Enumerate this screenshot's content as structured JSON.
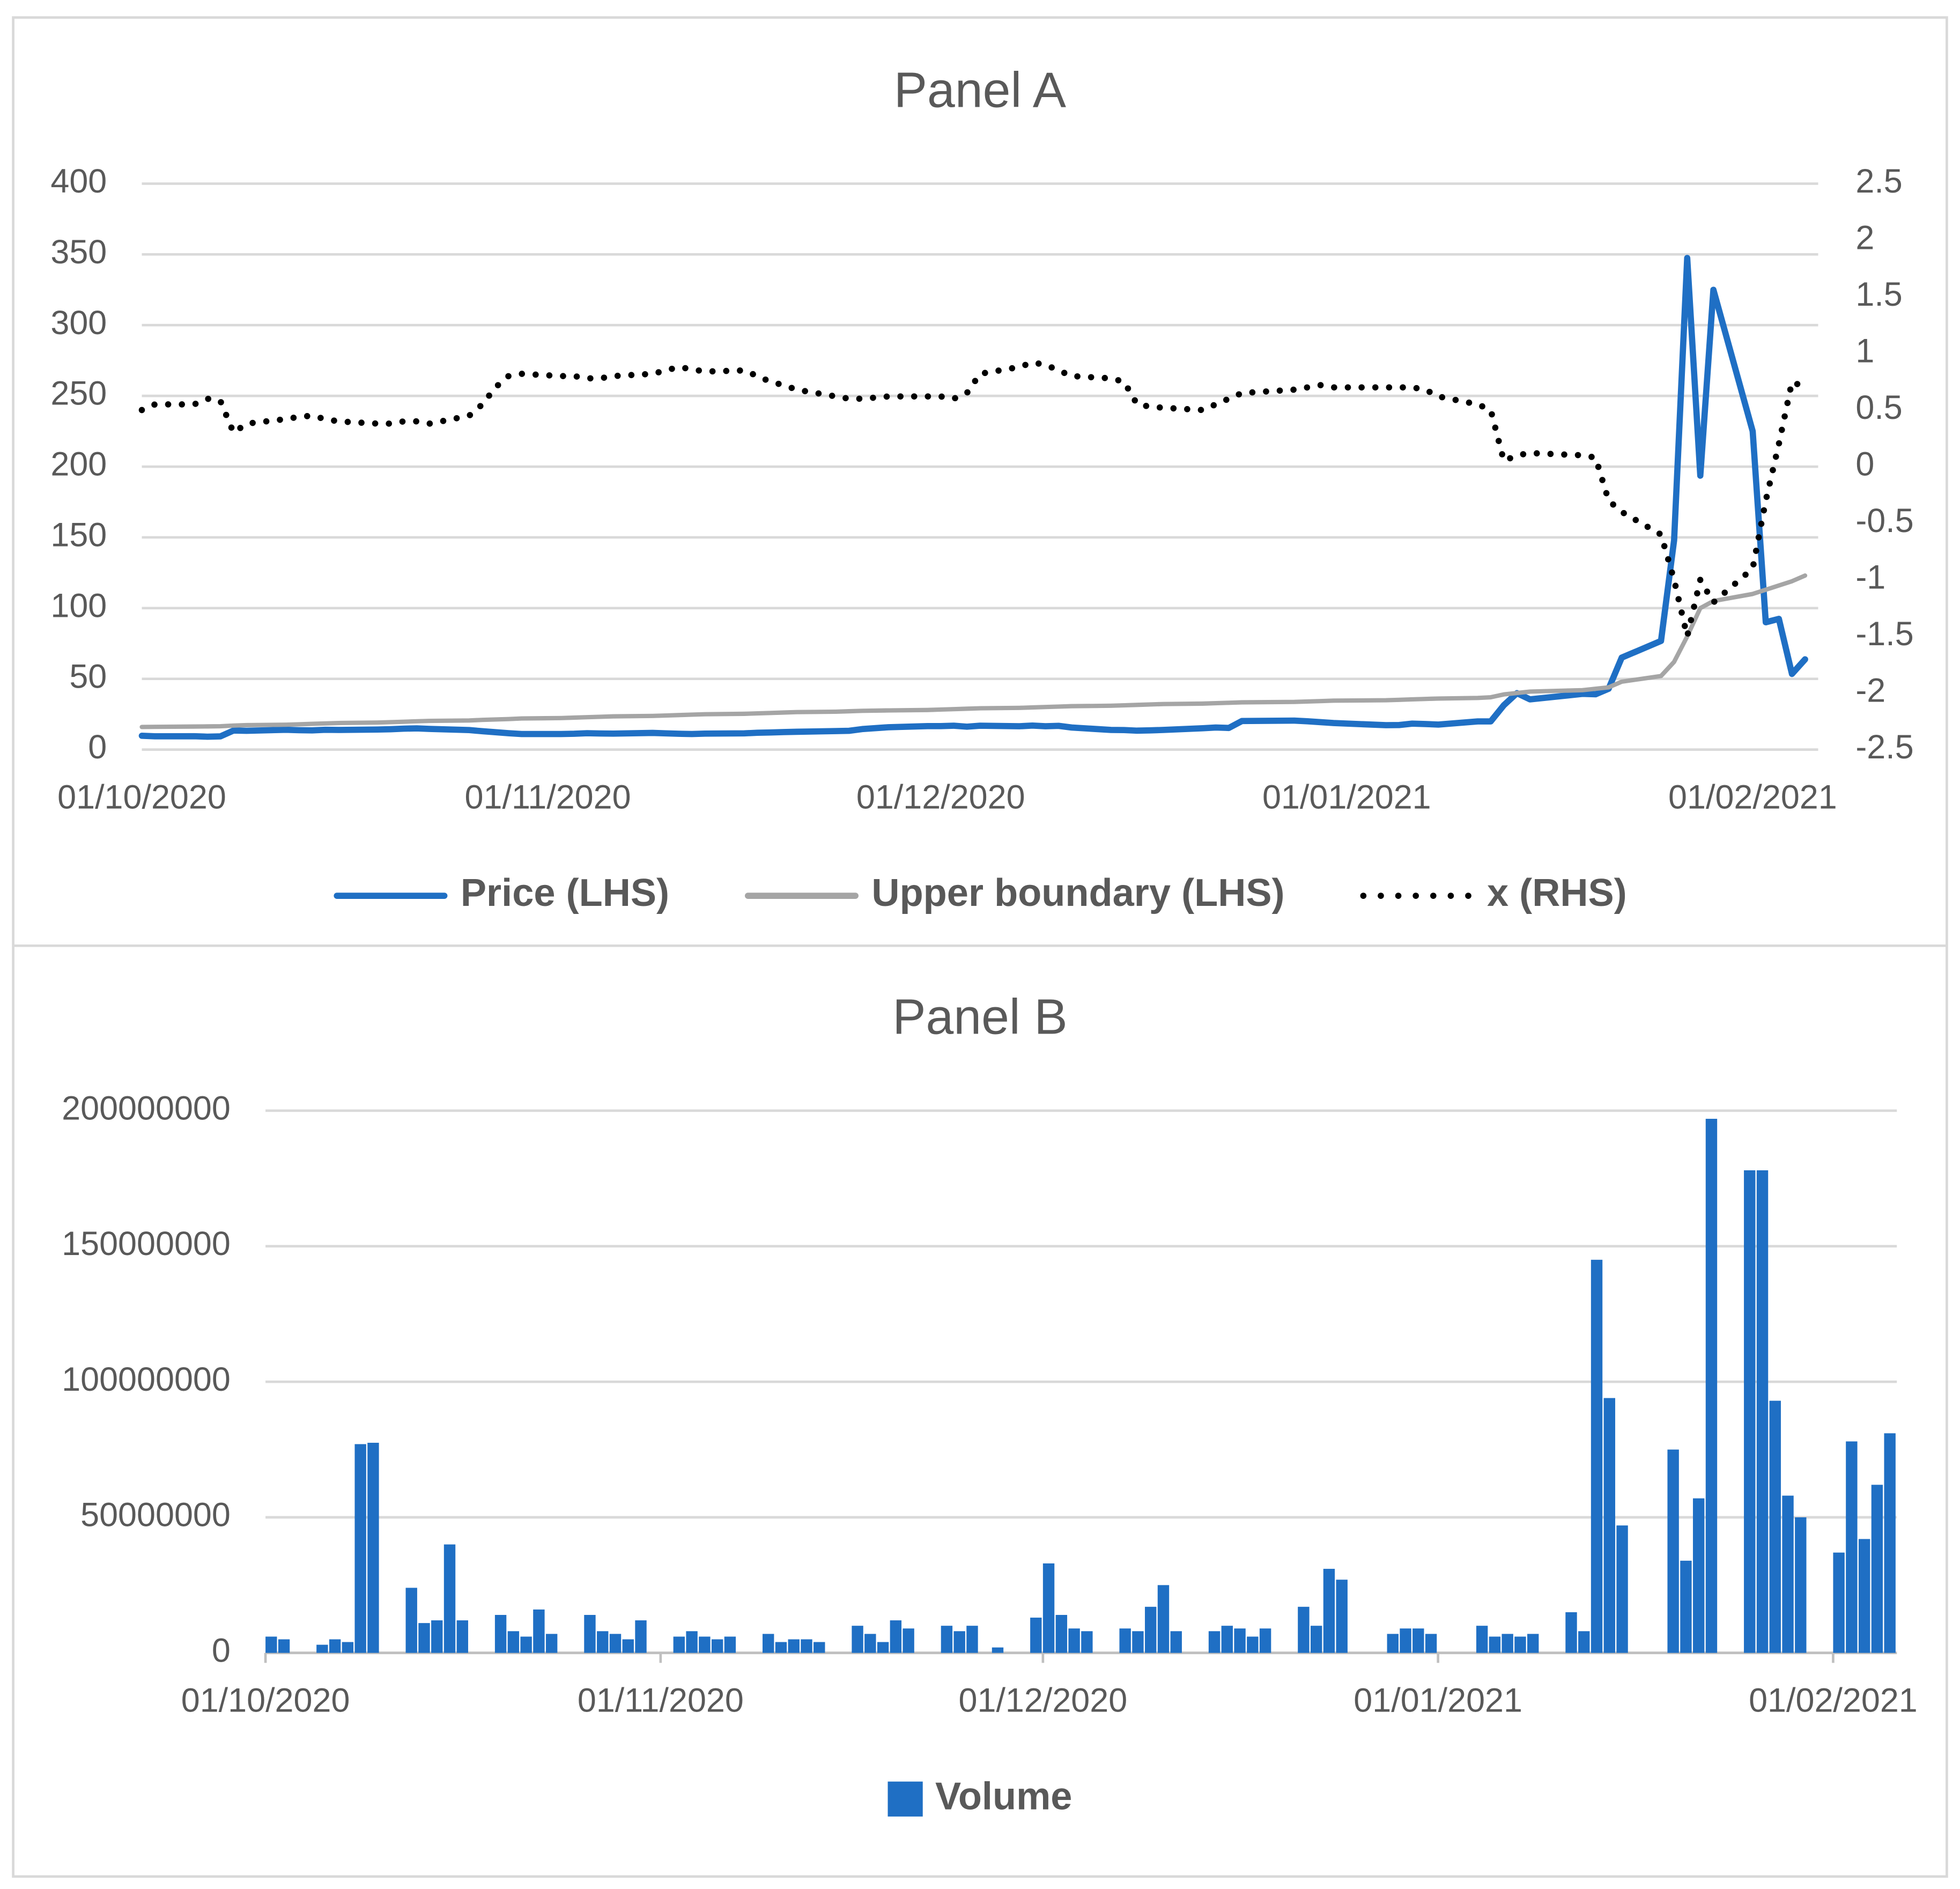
{
  "chart_data": [
    {
      "type": "line",
      "title": "Panel A",
      "x": [
        "2020-10-01",
        "2020-10-02",
        "2020-10-05",
        "2020-10-06",
        "2020-10-07",
        "2020-10-08",
        "2020-10-09",
        "2020-10-12",
        "2020-10-13",
        "2020-10-14",
        "2020-10-15",
        "2020-10-16",
        "2020-10-19",
        "2020-10-20",
        "2020-10-21",
        "2020-10-22",
        "2020-10-23",
        "2020-10-26",
        "2020-10-27",
        "2020-10-28",
        "2020-10-29",
        "2020-10-30",
        "2020-11-02",
        "2020-11-03",
        "2020-11-04",
        "2020-11-05",
        "2020-11-06",
        "2020-11-09",
        "2020-11-10",
        "2020-11-11",
        "2020-11-12",
        "2020-11-13",
        "2020-11-16",
        "2020-11-17",
        "2020-11-18",
        "2020-11-19",
        "2020-11-20",
        "2020-11-23",
        "2020-11-24",
        "2020-11-25",
        "2020-11-27",
        "2020-11-30",
        "2020-12-01",
        "2020-12-02",
        "2020-12-03",
        "2020-12-04",
        "2020-12-07",
        "2020-12-08",
        "2020-12-09",
        "2020-12-10",
        "2020-12-11",
        "2020-12-14",
        "2020-12-15",
        "2020-12-16",
        "2020-12-17",
        "2020-12-18",
        "2020-12-21",
        "2020-12-22",
        "2020-12-23",
        "2020-12-24",
        "2020-12-28",
        "2020-12-29",
        "2020-12-30",
        "2020-12-31",
        "2021-01-04",
        "2021-01-05",
        "2021-01-06",
        "2021-01-07",
        "2021-01-08",
        "2021-01-11",
        "2021-01-12",
        "2021-01-13",
        "2021-01-14",
        "2021-01-15",
        "2021-01-19",
        "2021-01-20",
        "2021-01-21",
        "2021-01-22",
        "2021-01-25",
        "2021-01-26",
        "2021-01-27",
        "2021-01-28",
        "2021-01-29",
        "2021-02-01",
        "2021-02-02",
        "2021-02-03",
        "2021-02-04",
        "2021-02-05"
      ],
      "xlim": [
        "2020-10-01",
        "2021-02-06"
      ],
      "xticks": [
        {
          "value": "2020-10-01",
          "label": "01/10/2020"
        },
        {
          "value": "2020-11-01",
          "label": "01/11/2020"
        },
        {
          "value": "2020-12-01",
          "label": "01/12/2020"
        },
        {
          "value": "2021-01-01",
          "label": "01/01/2021"
        },
        {
          "value": "2021-02-01",
          "label": "01/02/2021"
        }
      ],
      "ylim": [
        0,
        400
      ],
      "yticks": [
        0,
        50,
        100,
        150,
        200,
        250,
        300,
        350,
        400
      ],
      "y2lim": [
        -2.5,
        2.5
      ],
      "y2ticks": [
        -2.5,
        -2,
        -1.5,
        -1,
        -0.5,
        0,
        0.5,
        1,
        1.5,
        2,
        2.5
      ],
      "grid": true,
      "legend": "bottom",
      "series": [
        {
          "name": "Price (LHS)",
          "color": "#1f6fc4",
          "style": "solid",
          "values": [
            9.77,
            9.39,
            9.46,
            9.13,
            9.36,
            13.49,
            13.31,
            14.0,
            13.7,
            13.6,
            14.0,
            13.9,
            14.2,
            14.4,
            14.8,
            15.0,
            14.6,
            13.8,
            13.0,
            12.3,
            11.6,
            11.0,
            11.0,
            11.2,
            11.6,
            11.4,
            11.3,
            11.8,
            11.5,
            11.2,
            11.0,
            11.3,
            11.5,
            11.9,
            12.1,
            12.4,
            12.6,
            13.1,
            13.3,
            14.5,
            15.8,
            16.6,
            16.6,
            16.9,
            16.2,
            16.9,
            16.5,
            17.0,
            16.5,
            16.8,
            15.6,
            13.9,
            13.8,
            13.4,
            13.6,
            13.9,
            15.1,
            15.6,
            15.3,
            20.2,
            20.5,
            20.0,
            19.4,
            18.8,
            17.25,
            17.37,
            18.36,
            18.08,
            17.69,
            19.94,
            19.95,
            31.4,
            39.9,
            35.5,
            39.4,
            39.1,
            43.0,
            65.0,
            76.8,
            148.0,
            347.5,
            193.6,
            325.0,
            225.0,
            90.0,
            92.4,
            53.5,
            63.8
          ]
        },
        {
          "name": "Upper boundary  (LHS)",
          "color": "#a5a5a5",
          "style": "solid",
          "values": [
            16,
            16.1,
            16.3,
            16.4,
            16.5,
            17,
            17.3,
            17.6,
            17.9,
            18.2,
            18.5,
            18.8,
            19.1,
            19.4,
            19.7,
            20,
            20.3,
            20.6,
            21,
            21.3,
            21.6,
            22,
            22.3,
            22.6,
            22.9,
            23.2,
            23.5,
            23.8,
            24.1,
            24.4,
            24.7,
            25,
            25.3,
            25.6,
            25.9,
            26.2,
            26.5,
            26.8,
            27.1,
            27.4,
            27.7,
            28,
            28.3,
            28.6,
            28.9,
            29.2,
            29.5,
            29.8,
            30.1,
            30.4,
            30.7,
            31,
            31.3,
            31.6,
            31.9,
            32.2,
            32.5,
            32.8,
            33.1,
            33.4,
            33.7,
            34,
            34.3,
            34.6,
            34.9,
            35.2,
            35.5,
            35.8,
            36.1,
            36.5,
            37,
            39,
            40,
            41,
            42,
            43,
            44,
            48,
            52,
            62,
            80,
            100,
            105,
            110,
            113,
            116,
            119,
            123
          ]
        },
        {
          "name": "x  (RHS)",
          "color": "#000000",
          "style": "dotted",
          "axis": "y2",
          "values": [
            0.5,
            0.55,
            0.55,
            0.6,
            0.58,
            0.3,
            0.38,
            0.42,
            0.44,
            0.45,
            0.42,
            0.4,
            0.38,
            0.38,
            0.4,
            0.4,
            0.38,
            0.45,
            0.55,
            0.7,
            0.8,
            0.82,
            0.8,
            0.8,
            0.78,
            0.78,
            0.8,
            0.82,
            0.85,
            0.88,
            0.86,
            0.84,
            0.85,
            0.8,
            0.75,
            0.72,
            0.68,
            0.62,
            0.6,
            0.6,
            0.62,
            0.62,
            0.62,
            0.6,
            0.65,
            0.82,
            0.88,
            0.92,
            0.9,
            0.85,
            0.8,
            0.78,
            0.75,
            0.55,
            0.53,
            0.52,
            0.5,
            0.55,
            0.6,
            0.65,
            0.68,
            0.7,
            0.72,
            0.7,
            0.7,
            0.7,
            0.7,
            0.68,
            0.62,
            0.55,
            0.5,
            0.05,
            0.1,
            0.12,
            0.1,
            0.08,
            -0.3,
            -0.4,
            -0.6,
            -1.0,
            -1.5,
            -1.0,
            -1.2,
            -0.9,
            -0.3,
            0.2,
            0.75,
            0.7
          ]
        }
      ]
    },
    {
      "type": "bar",
      "title": "Panel B",
      "x": [
        "2020-10-01",
        "2020-10-02",
        "2020-10-05",
        "2020-10-06",
        "2020-10-07",
        "2020-10-08",
        "2020-10-09",
        "2020-10-12",
        "2020-10-13",
        "2020-10-14",
        "2020-10-15",
        "2020-10-16",
        "2020-10-19",
        "2020-10-20",
        "2020-10-21",
        "2020-10-22",
        "2020-10-23",
        "2020-10-26",
        "2020-10-27",
        "2020-10-28",
        "2020-10-29",
        "2020-10-30",
        "2020-11-02",
        "2020-11-03",
        "2020-11-04",
        "2020-11-05",
        "2020-11-06",
        "2020-11-09",
        "2020-11-10",
        "2020-11-11",
        "2020-11-12",
        "2020-11-13",
        "2020-11-16",
        "2020-11-17",
        "2020-11-18",
        "2020-11-19",
        "2020-11-20",
        "2020-11-23",
        "2020-11-24",
        "2020-11-25",
        "2020-11-27",
        "2020-11-30",
        "2020-12-01",
        "2020-12-02",
        "2020-12-03",
        "2020-12-04",
        "2020-12-07",
        "2020-12-08",
        "2020-12-09",
        "2020-12-10",
        "2020-12-11",
        "2020-12-14",
        "2020-12-15",
        "2020-12-16",
        "2020-12-17",
        "2020-12-18",
        "2020-12-21",
        "2020-12-22",
        "2020-12-23",
        "2020-12-24",
        "2020-12-28",
        "2020-12-29",
        "2020-12-30",
        "2020-12-31",
        "2021-01-04",
        "2021-01-05",
        "2021-01-06",
        "2021-01-07",
        "2021-01-08",
        "2021-01-11",
        "2021-01-12",
        "2021-01-13",
        "2021-01-14",
        "2021-01-15",
        "2021-01-19",
        "2021-01-20",
        "2021-01-21",
        "2021-01-22",
        "2021-01-25",
        "2021-01-26",
        "2021-01-27",
        "2021-01-28",
        "2021-01-29",
        "2021-02-01",
        "2021-02-02",
        "2021-02-03",
        "2021-02-04",
        "2021-02-05"
      ],
      "xlim": [
        "2020-10-01",
        "2021-02-06"
      ],
      "xticks": [
        {
          "value": "2020-10-01",
          "label": "01/10/2020"
        },
        {
          "value": "2020-11-01",
          "label": "01/11/2020"
        },
        {
          "value": "2020-12-01",
          "label": "01/12/2020"
        },
        {
          "value": "2021-01-01",
          "label": "01/01/2021"
        },
        {
          "value": "2021-02-01",
          "label": "01/02/2021"
        }
      ],
      "ylim": [
        0,
        200000000
      ],
      "yticks": [
        0,
        50000000,
        100000000,
        150000000,
        200000000
      ],
      "grid": true,
      "legend": "bottom",
      "series": [
        {
          "name": "Volume",
          "color": "#1f6fc4",
          "values": [
            6000000,
            5000000,
            3000000,
            5000000,
            4000000,
            77000000,
            77500000,
            24000000,
            11000000,
            12000000,
            40000000,
            12000000,
            14000000,
            8000000,
            6000000,
            16000000,
            7000000,
            14000000,
            8000000,
            7000000,
            5000000,
            12000000,
            6000000,
            8000000,
            6000000,
            5000000,
            6000000,
            7000000,
            4000000,
            5000000,
            5000000,
            4000000,
            10000000,
            7000000,
            4000000,
            12000000,
            9000000,
            10000000,
            8000000,
            10000000,
            2000000,
            13000000,
            33000000,
            14000000,
            9000000,
            8000000,
            9000000,
            8000000,
            17000000,
            25000000,
            8000000,
            8000000,
            10000000,
            9000000,
            6000000,
            9000000,
            17000000,
            10000000,
            31000000,
            27000000,
            7000000,
            9000000,
            9000000,
            7000000,
            10000000,
            6000000,
            7000000,
            6000000,
            7000000,
            15000000,
            8000000,
            145000000,
            94000000,
            47000000,
            75000000,
            34000000,
            57000000,
            197000000,
            178000000,
            178000000,
            93000000,
            58000000,
            50000000,
            37000000,
            78000000,
            42000000,
            62000000,
            81000000
          ]
        }
      ]
    }
  ]
}
